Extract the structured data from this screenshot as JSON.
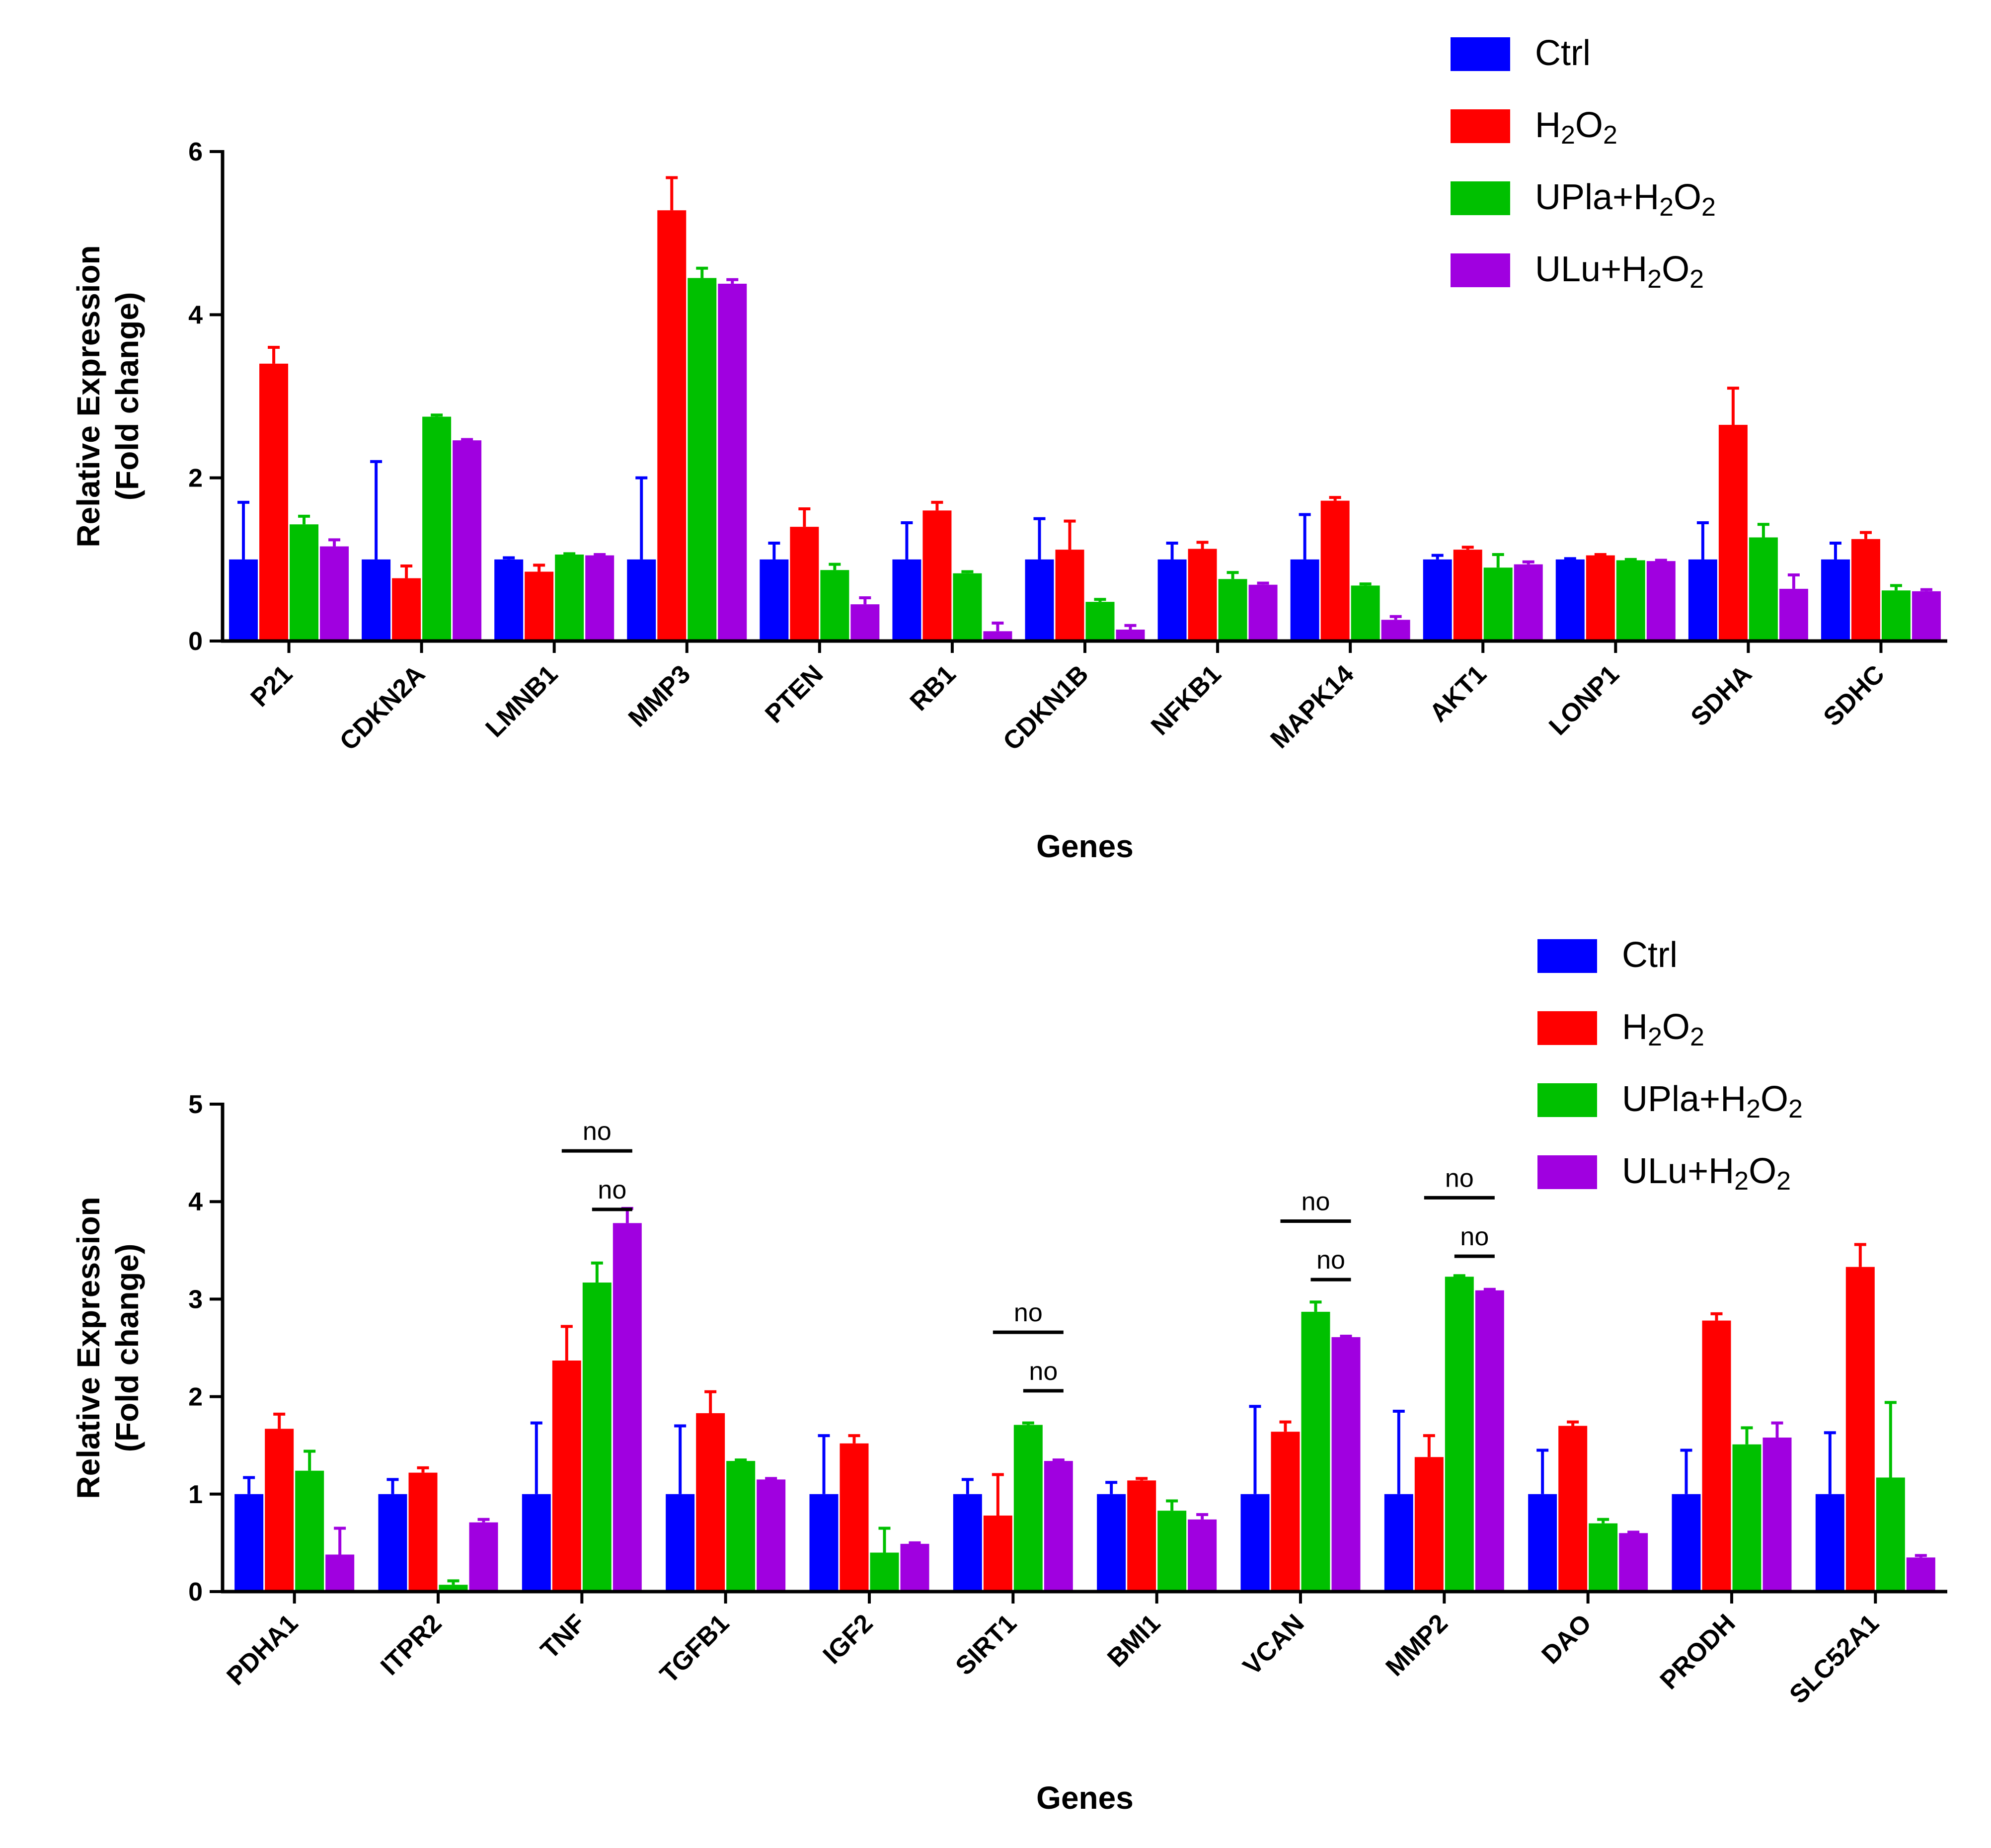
{
  "colors": {
    "ctrl": "#0000ff",
    "h2o2": "#ff0000",
    "upla": "#00c000",
    "ulu": "#a000e0"
  },
  "legend_labels": {
    "ctrl": "Ctrl",
    "h2o2": "H2O2",
    "upla": "UPla+H2O2",
    "ulu": "ULu+H2O2"
  },
  "chart_data": [
    {
      "type": "bar",
      "title": "",
      "xlabel": "Genes",
      "ylabel_line1": "Relative Expression",
      "ylabel_line2": "(Fold change)",
      "ylim": [
        0,
        6
      ],
      "yticks": [
        0,
        2,
        4,
        6
      ],
      "legend_position": "top-right",
      "categories": [
        "P21",
        "CDKN2A",
        "LMNB1",
        "MMP3",
        "PTEN",
        "RB1",
        "CDKN1B",
        "NFKB1",
        "MAPK14",
        "AKT1",
        "LONP1",
        "SDHA",
        "SDHC"
      ],
      "series": [
        {
          "key": "ctrl",
          "name": "Ctrl",
          "values": [
            1.0,
            1.0,
            1.0,
            1.0,
            1.0,
            1.0,
            1.0,
            1.0,
            1.0,
            1.0,
            1.0,
            1.0,
            1.0
          ],
          "errors": [
            0.7,
            1.2,
            0.02,
            1.0,
            0.2,
            0.45,
            0.5,
            0.2,
            0.55,
            0.05,
            0.01,
            0.45,
            0.2
          ]
        },
        {
          "key": "h2o2",
          "name": "H2O2",
          "values": [
            3.4,
            0.77,
            0.85,
            5.28,
            1.4,
            1.6,
            1.12,
            1.13,
            1.72,
            1.12,
            1.05,
            2.65,
            1.25
          ],
          "errors": [
            0.2,
            0.15,
            0.08,
            0.4,
            0.22,
            0.1,
            0.35,
            0.08,
            0.04,
            0.03,
            0.01,
            0.45,
            0.08
          ]
        },
        {
          "key": "upla",
          "name": "UPla+H2O2",
          "values": [
            1.43,
            2.75,
            1.06,
            4.45,
            0.87,
            0.83,
            0.48,
            0.76,
            0.68,
            0.9,
            0.99,
            1.27,
            0.62
          ],
          "errors": [
            0.1,
            0.02,
            0.01,
            0.12,
            0.07,
            0.02,
            0.03,
            0.08,
            0.02,
            0.16,
            0.01,
            0.16,
            0.06
          ]
        },
        {
          "key": "ulu",
          "name": "ULu+H2O2",
          "values": [
            1.16,
            2.46,
            1.05,
            4.38,
            0.45,
            0.12,
            0.14,
            0.69,
            0.26,
            0.94,
            0.98,
            0.64,
            0.61
          ],
          "errors": [
            0.08,
            0.01,
            0.01,
            0.05,
            0.08,
            0.1,
            0.05,
            0.02,
            0.04,
            0.03,
            0.01,
            0.17,
            0.02
          ]
        }
      ],
      "annotations": []
    },
    {
      "type": "bar",
      "title": "",
      "xlabel": "Genes",
      "ylabel_line1": "Relative Expression",
      "ylabel_line2": "(Fold change)",
      "ylim": [
        0,
        5
      ],
      "yticks": [
        0,
        1,
        2,
        3,
        4,
        5
      ],
      "legend_position": "top-right",
      "categories": [
        "PDHA1",
        "ITPR2",
        "TNF",
        "TGFB1",
        "IGF2",
        "SIRT1",
        "BMI1",
        "VCAN",
        "MMP2",
        "DAO",
        "PRODH",
        "SLC52A1"
      ],
      "series": [
        {
          "key": "ctrl",
          "name": "Ctrl",
          "values": [
            1.0,
            1.0,
            1.0,
            1.0,
            1.0,
            1.0,
            1.0,
            1.0,
            1.0,
            1.0,
            1.0,
            1.0
          ],
          "errors": [
            0.17,
            0.15,
            0.73,
            0.7,
            0.6,
            0.15,
            0.12,
            0.9,
            0.85,
            0.45,
            0.45,
            0.63
          ]
        },
        {
          "key": "h2o2",
          "name": "H2O2",
          "values": [
            1.67,
            1.22,
            2.37,
            1.83,
            1.52,
            0.78,
            1.14,
            1.64,
            1.38,
            1.7,
            2.78,
            3.33
          ]
        },
        {
          "key": "upla",
          "name": "UPla+H2O2",
          "values": [
            1.24,
            0.07,
            3.17,
            1.34,
            0.4,
            1.71,
            0.83,
            2.87,
            3.23,
            0.7,
            1.51,
            1.17
          ]
        },
        {
          "key": "ulu",
          "name": "ULu+H2O2",
          "values": [
            0.38,
            0.71,
            3.78,
            1.15,
            0.49,
            1.34,
            0.74,
            2.61,
            3.09,
            0.6,
            1.58,
            0.35
          ]
        }
      ],
      "errors_h2o2": [
        0.15,
        0.05,
        0.35,
        0.22,
        0.08,
        0.42,
        0.02,
        0.1,
        0.22,
        0.04,
        0.07,
        0.23
      ],
      "errors_upla": [
        0.2,
        0.04,
        0.2,
        0.01,
        0.25,
        0.02,
        0.1,
        0.1,
        0.01,
        0.04,
        0.17,
        0.77
      ],
      "errors_ulu": [
        0.27,
        0.03,
        0.15,
        0.01,
        0.01,
        0.01,
        0.05,
        0.01,
        0.01,
        0.01,
        0.15,
        0.02
      ],
      "annotations": [
        {
          "category": "TNF",
          "from_series": 1,
          "to_series": 3,
          "text": "no",
          "level": 4.52
        },
        {
          "category": "TNF",
          "from_series": 2,
          "to_series": 3,
          "text": "no",
          "level": 3.92
        },
        {
          "category": "SIRT1",
          "from_series": 1,
          "to_series": 3,
          "text": "no",
          "level": 2.66
        },
        {
          "category": "SIRT1",
          "from_series": 2,
          "to_series": 3,
          "text": "no",
          "level": 2.06
        },
        {
          "category": "VCAN",
          "from_series": 1,
          "to_series": 3,
          "text": "no",
          "level": 3.8
        },
        {
          "category": "VCAN",
          "from_series": 2,
          "to_series": 3,
          "text": "no",
          "level": 3.2
        },
        {
          "category": "MMP2",
          "from_series": 1,
          "to_series": 3,
          "text": "no",
          "level": 4.04
        },
        {
          "category": "MMP2",
          "from_series": 2,
          "to_series": 3,
          "text": "no",
          "level": 3.44
        }
      ]
    }
  ]
}
